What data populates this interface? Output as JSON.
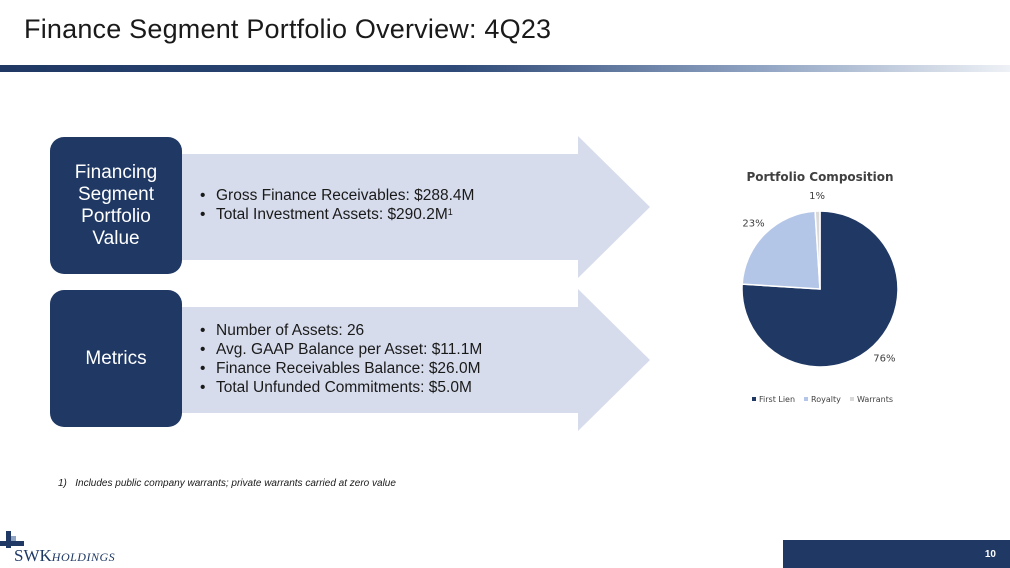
{
  "header": {
    "title": "Finance Segment Portfolio Overview: 4Q23"
  },
  "sections": [
    {
      "label_lines": [
        "Financing",
        "Segment",
        "Portfolio",
        "Value"
      ],
      "bullets": [
        "Gross Finance Receivables: $288.4M",
        "Total Investment Assets: $290.2M"
      ],
      "footnote_marker": "1"
    },
    {
      "label_lines": [
        "Metrics"
      ],
      "bullets": [
        "Number of Assets: 26",
        "Avg. GAAP Balance per Asset: $11.1M",
        "Finance Receivables Balance: $26.0M",
        "Total Unfunded Commitments: $5.0M"
      ]
    }
  ],
  "footnote": "1)   Includes public company warrants; private warrants carried at zero value",
  "chart_data": {
    "type": "pie",
    "title": "Portfolio Composition",
    "categories": [
      "First Lien",
      "Royalty",
      "Warrants"
    ],
    "values": [
      76,
      23,
      1
    ],
    "data_labels": [
      "76%",
      "23%",
      "1%"
    ],
    "colors": [
      "#1f3864",
      "#b4c6e7",
      "#d9d9d9"
    ],
    "legend_position": "bottom"
  },
  "logo": {
    "name": "SWK",
    "sub": "HOLDINGS"
  },
  "page_number": "10"
}
